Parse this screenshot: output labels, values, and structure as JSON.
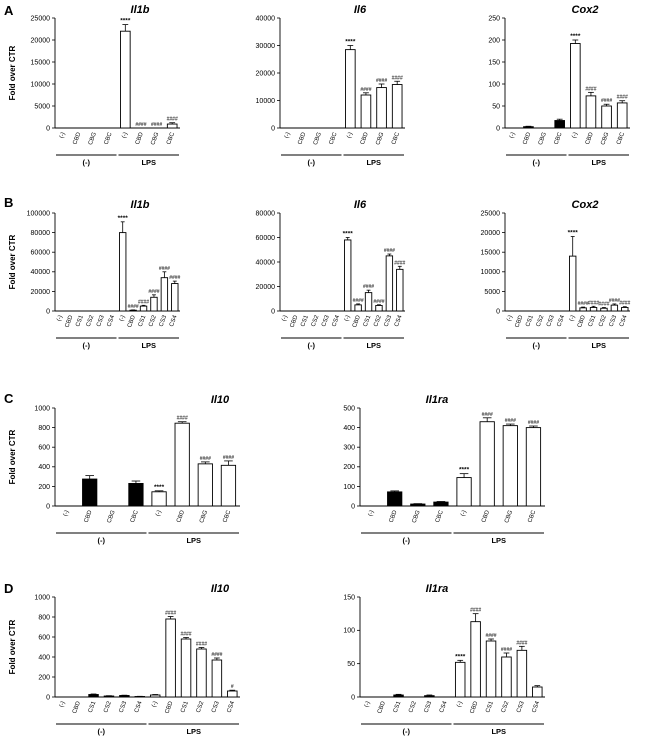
{
  "colors": {
    "bar_fill_white": "#ffffff",
    "bar_fill_black": "#000000",
    "stroke": "#000000"
  },
  "panels": [
    {
      "letter": "A"
    },
    {
      "letter": "B"
    },
    {
      "letter": "C"
    },
    {
      "letter": "D"
    }
  ],
  "chart_data": [
    {
      "panel": "A",
      "type": "bar",
      "title": "Il1b",
      "ylabel": "Fold over CTR",
      "ylim": [
        0,
        25000
      ],
      "yticks": [
        0,
        5000,
        10000,
        15000,
        20000,
        25000
      ],
      "categories": [
        "(-)",
        "CBD",
        "CBG",
        "CBC",
        "(-)",
        "CBD",
        "CBG",
        "CBC"
      ],
      "groups": [
        {
          "label": "(-)",
          "start": 0,
          "end": 3
        },
        {
          "label": "LPS",
          "start": 4,
          "end": 7
        }
      ],
      "values": [
        0,
        0,
        0,
        0,
        22000,
        0,
        0,
        900
      ],
      "errors": [
        0,
        0,
        0,
        0,
        1500,
        0,
        0,
        300
      ],
      "fills": [
        "black",
        "black",
        "black",
        "black",
        "white",
        "white",
        "white",
        "white"
      ],
      "significance": [
        "",
        "",
        "",
        "",
        "****",
        "####",
        "####",
        "####"
      ]
    },
    {
      "panel": "A",
      "type": "bar",
      "title": "Il6",
      "ylabel": "",
      "ylim": [
        0,
        40000
      ],
      "yticks": [
        0,
        10000,
        20000,
        30000,
        40000
      ],
      "categories": [
        "(-)",
        "CBD",
        "CBG",
        "CBC",
        "(-)",
        "CBD",
        "CBG",
        "CBC"
      ],
      "groups": [
        {
          "label": "(-)",
          "start": 0,
          "end": 3
        },
        {
          "label": "LPS",
          "start": 4,
          "end": 7
        }
      ],
      "values": [
        0,
        0,
        0,
        0,
        28500,
        12000,
        14700,
        15800
      ],
      "errors": [
        0,
        0,
        0,
        0,
        1500,
        800,
        1300,
        1200
      ],
      "fills": [
        "black",
        "black",
        "black",
        "black",
        "white",
        "white",
        "white",
        "white"
      ],
      "significance": [
        "",
        "",
        "",
        "",
        "****",
        "####",
        "####",
        "####"
      ]
    },
    {
      "panel": "A",
      "type": "bar",
      "title": "Cox2",
      "ylabel": "",
      "ylim": [
        0,
        250
      ],
      "yticks": [
        0,
        50,
        100,
        150,
        200,
        250
      ],
      "categories": [
        "(-)",
        "CBD",
        "CBG",
        "CBC",
        "(-)",
        "CBD",
        "CBG",
        "CBC"
      ],
      "groups": [
        {
          "label": "(-)",
          "start": 0,
          "end": 3
        },
        {
          "label": "LPS",
          "start": 4,
          "end": 7
        }
      ],
      "values": [
        0,
        3,
        0,
        17,
        192,
        73,
        50,
        57
      ],
      "errors": [
        0,
        1,
        0,
        3,
        8,
        8,
        4,
        5
      ],
      "fills": [
        "black",
        "black",
        "black",
        "black",
        "white",
        "white",
        "white",
        "white"
      ],
      "significance": [
        "",
        "",
        "",
        "",
        "****",
        "####",
        "####",
        "####"
      ]
    },
    {
      "panel": "B",
      "type": "bar",
      "title": "Il1b",
      "ylabel": "Fold over CTR",
      "ylim": [
        0,
        100000
      ],
      "yticks": [
        0,
        20000,
        40000,
        60000,
        80000,
        100000
      ],
      "categories": [
        "(-)",
        "CBD",
        "CS1",
        "CS2",
        "CS3",
        "CS4",
        "(-)",
        "CBD",
        "CS1",
        "CS2",
        "CS3",
        "CS4"
      ],
      "groups": [
        {
          "label": "(-)",
          "start": 0,
          "end": 5
        },
        {
          "label": "LPS",
          "start": 6,
          "end": 11
        }
      ],
      "values": [
        0,
        0,
        0,
        0,
        0,
        0,
        80000,
        800,
        5000,
        14000,
        34000,
        28000
      ],
      "errors": [
        0,
        0,
        0,
        0,
        0,
        0,
        11000,
        300,
        800,
        2500,
        6000,
        2500
      ],
      "fills": [
        "black",
        "black",
        "black",
        "black",
        "black",
        "black",
        "white",
        "white",
        "white",
        "white",
        "white",
        "white"
      ],
      "significance": [
        "",
        "",
        "",
        "",
        "",
        "",
        "****",
        "####",
        "####",
        "####",
        "####",
        "####"
      ]
    },
    {
      "panel": "B",
      "type": "bar",
      "title": "Il6",
      "ylabel": "",
      "ylim": [
        0,
        80000
      ],
      "yticks": [
        0,
        20000,
        40000,
        60000,
        80000
      ],
      "categories": [
        "(-)",
        "CBD",
        "CS1",
        "CS2",
        "CS3",
        "CS4",
        "(-)",
        "CBD",
        "CS1",
        "CS2",
        "CS3",
        "CS4"
      ],
      "groups": [
        {
          "label": "(-)",
          "start": 0,
          "end": 5
        },
        {
          "label": "LPS",
          "start": 6,
          "end": 11
        }
      ],
      "values": [
        0,
        0,
        0,
        0,
        0,
        0,
        58000,
        5000,
        15000,
        4500,
        45000,
        34000
      ],
      "errors": [
        0,
        0,
        0,
        0,
        0,
        0,
        2000,
        800,
        2000,
        600,
        1500,
        2500
      ],
      "fills": [
        "black",
        "black",
        "black",
        "black",
        "black",
        "black",
        "white",
        "white",
        "white",
        "white",
        "white",
        "white"
      ],
      "significance": [
        "",
        "",
        "",
        "",
        "",
        "",
        "****",
        "####",
        "####",
        "####",
        "####",
        "####"
      ]
    },
    {
      "panel": "B",
      "type": "bar",
      "title": "Cox2",
      "ylabel": "",
      "ylim": [
        0,
        25000
      ],
      "yticks": [
        0,
        5000,
        10000,
        15000,
        20000,
        25000
      ],
      "categories": [
        "(-)",
        "CBD",
        "CS1",
        "CS2",
        "CS3",
        "CS4",
        "(-)",
        "CBD",
        "CS1",
        "CS2",
        "CS3",
        "CS4"
      ],
      "groups": [
        {
          "label": "(-)",
          "start": 0,
          "end": 5
        },
        {
          "label": "LPS",
          "start": 6,
          "end": 11
        }
      ],
      "values": [
        0,
        0,
        0,
        0,
        0,
        0,
        14000,
        800,
        900,
        700,
        1500,
        900
      ],
      "errors": [
        0,
        0,
        0,
        0,
        0,
        0,
        5000,
        200,
        300,
        200,
        300,
        200
      ],
      "fills": [
        "black",
        "black",
        "black",
        "black",
        "black",
        "black",
        "white",
        "white",
        "white",
        "white",
        "white",
        "white"
      ],
      "significance": [
        "",
        "",
        "",
        "",
        "",
        "",
        "****",
        "####",
        "####",
        "####",
        "####",
        "####"
      ]
    },
    {
      "panel": "C",
      "type": "bar",
      "title": "Il10",
      "ylabel": "Fold over CTR",
      "ylim": [
        0,
        1000
      ],
      "yticks": [
        0,
        200,
        400,
        600,
        800,
        1000
      ],
      "categories": [
        "(-)",
        "CBD",
        "CBG",
        "CBC",
        "(-)",
        "CBD",
        "CBG",
        "CBC"
      ],
      "groups": [
        {
          "label": "(-)",
          "start": 0,
          "end": 3
        },
        {
          "label": "LPS",
          "start": 4,
          "end": 7
        }
      ],
      "values": [
        0,
        275,
        0,
        230,
        145,
        845,
        430,
        415
      ],
      "errors": [
        0,
        35,
        0,
        25,
        10,
        15,
        20,
        45
      ],
      "fills": [
        "black",
        "black",
        "black",
        "black",
        "white",
        "white",
        "white",
        "white"
      ],
      "significance": [
        "",
        "",
        "",
        "",
        "****",
        "####",
        "####",
        "####"
      ]
    },
    {
      "panel": "C",
      "type": "bar",
      "title": "Il1ra",
      "ylabel": "",
      "ylim": [
        0,
        500
      ],
      "yticks": [
        0,
        100,
        200,
        300,
        400,
        500
      ],
      "categories": [
        "(-)",
        "CBD",
        "CBG",
        "CBC",
        "(-)",
        "CBD",
        "CBG",
        "CBC"
      ],
      "groups": [
        {
          "label": "(-)",
          "start": 0,
          "end": 3
        },
        {
          "label": "LPS",
          "start": 4,
          "end": 7
        }
      ],
      "values": [
        0,
        72,
        10,
        20,
        145,
        430,
        410,
        400
      ],
      "errors": [
        0,
        5,
        2,
        3,
        20,
        20,
        8,
        8
      ],
      "fills": [
        "black",
        "black",
        "black",
        "black",
        "white",
        "white",
        "white",
        "white"
      ],
      "significance": [
        "",
        "",
        "",
        "",
        "****",
        "####",
        "####",
        "####"
      ]
    },
    {
      "panel": "D",
      "type": "bar",
      "title": "Il10",
      "ylabel": "Fold over CTR",
      "ylim": [
        0,
        1000
      ],
      "yticks": [
        0,
        200,
        400,
        600,
        800,
        1000
      ],
      "categories": [
        "(-)",
        "CBD",
        "CS1",
        "CS2",
        "CS3",
        "CS4",
        "(-)",
        "CBD",
        "CS1",
        "CS2",
        "CS3",
        "CS4"
      ],
      "groups": [
        {
          "label": "(-)",
          "start": 0,
          "end": 5
        },
        {
          "label": "LPS",
          "start": 6,
          "end": 11
        }
      ],
      "values": [
        0,
        0,
        25,
        10,
        15,
        5,
        20,
        780,
        580,
        480,
        370,
        60
      ],
      "errors": [
        0,
        0,
        5,
        3,
        3,
        2,
        5,
        25,
        15,
        15,
        20,
        8
      ],
      "fills": [
        "black",
        "black",
        "black",
        "black",
        "black",
        "black",
        "white",
        "white",
        "white",
        "white",
        "white",
        "white"
      ],
      "significance": [
        "",
        "",
        "",
        "",
        "",
        "",
        "",
        "####",
        "####",
        "####",
        "####",
        "#"
      ]
    },
    {
      "panel": "D",
      "type": "bar",
      "title": "Il1ra",
      "ylabel": "",
      "ylim": [
        0,
        150
      ],
      "yticks": [
        0,
        50,
        100,
        150
      ],
      "categories": [
        "(-)",
        "CBD",
        "CS1",
        "CS2",
        "CS3",
        "CS4",
        "(-)",
        "CBD",
        "CS1",
        "CS2",
        "CS3",
        "CS4"
      ],
      "groups": [
        {
          "label": "(-)",
          "start": 0,
          "end": 5
        },
        {
          "label": "LPS",
          "start": 6,
          "end": 11
        }
      ],
      "values": [
        0,
        0,
        3,
        0,
        2,
        0,
        52,
        113,
        84,
        60,
        70,
        15
      ],
      "errors": [
        0,
        0,
        1,
        0,
        1,
        0,
        3,
        12,
        3,
        6,
        6,
        2
      ],
      "fills": [
        "black",
        "black",
        "black",
        "black",
        "black",
        "black",
        "white",
        "white",
        "white",
        "white",
        "white",
        "white"
      ],
      "significance": [
        "",
        "",
        "",
        "",
        "",
        "",
        "****",
        "####",
        "####",
        "####",
        "####",
        ""
      ]
    }
  ]
}
